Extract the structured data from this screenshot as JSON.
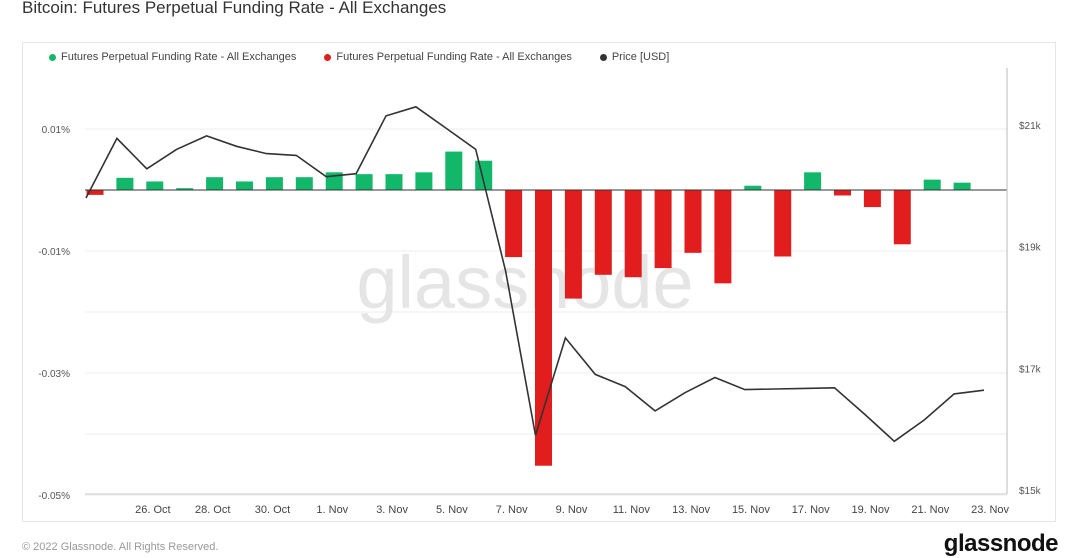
{
  "title": "Bitcoin: Futures Perpetual Funding Rate - All Exchanges",
  "watermark": "glassnode",
  "footer": "© 2022 Glassnode. All Rights Reserved.",
  "brand": "glassnode",
  "colors": {
    "positive": "#12b76a",
    "negative": "#e11d1d",
    "price": "#333333",
    "grid": "#eeeeee"
  },
  "chart_data": {
    "type": "bar",
    "legend": [
      {
        "label": "Futures Perpetual Funding Rate - All Exchanges",
        "color": "#12b76a"
      },
      {
        "label": "Futures Perpetual Funding Rate - All Exchanges",
        "color": "#e11d1d"
      },
      {
        "label": "Price [USD]",
        "color": "#333333"
      }
    ],
    "legend_position": "top-left",
    "x_ticks": [
      "26. Oct",
      "28. Oct",
      "30. Oct",
      "1. Nov",
      "3. Nov",
      "5. Nov",
      "7. Nov",
      "9. Nov",
      "11. Nov",
      "13. Nov",
      "15. Nov",
      "17. Nov",
      "19. Nov",
      "21. Nov",
      "23. Nov"
    ],
    "y_left_ticks": [
      "0.01%",
      "-0.01%",
      "-0.03%",
      "-0.05%"
    ],
    "y_left_tick_values": [
      0.01,
      -0.01,
      -0.03,
      -0.05
    ],
    "y_left_range": [
      -0.05,
      0.0195
    ],
    "y_right_ticks": [
      "$21k",
      "$19k",
      "$17k",
      "$15k"
    ],
    "y_right_tick_values": [
      21000,
      19000,
      17000,
      15000
    ],
    "y_right_range": [
      15000,
      22000
    ],
    "grid": true,
    "dates": [
      "2022-10-25",
      "2022-10-26",
      "2022-10-27",
      "2022-10-28",
      "2022-10-29",
      "2022-10-30",
      "2022-10-31",
      "2022-11-01",
      "2022-11-02",
      "2022-11-03",
      "2022-11-04",
      "2022-11-05",
      "2022-11-06",
      "2022-11-07",
      "2022-11-08",
      "2022-11-09",
      "2022-11-10",
      "2022-11-11",
      "2022-11-12",
      "2022-11-13",
      "2022-11-14",
      "2022-11-15",
      "2022-11-16",
      "2022-11-17",
      "2022-11-18",
      "2022-11-19",
      "2022-11-20",
      "2022-11-21",
      "2022-11-22",
      "2022-11-23",
      "2022-11-24"
    ],
    "funding_rate": [
      -0.0008,
      0.002,
      0.0014,
      0.0003,
      0.0021,
      0.0014,
      0.0021,
      0.0021,
      0.0029,
      0.0026,
      0.0026,
      0.0029,
      0.0063,
      0.0048,
      -0.011,
      -0.0452,
      -0.0178,
      -0.0139,
      -0.0143,
      -0.0128,
      -0.0103,
      -0.0153,
      0.0007,
      -0.0109,
      0.0029,
      -0.0009,
      -0.0028,
      -0.0089,
      0.0017,
      0.0012,
      null
    ],
    "price": [
      19800,
      20780,
      20280,
      20600,
      20820,
      20650,
      20530,
      20500,
      20150,
      20200,
      21150,
      21300,
      20950,
      20600,
      18600,
      15900,
      17500,
      16900,
      16700,
      16300,
      16600,
      16850,
      16650,
      16660,
      16670,
      16680,
      16250,
      15800,
      16150,
      16580,
      16640
    ]
  }
}
